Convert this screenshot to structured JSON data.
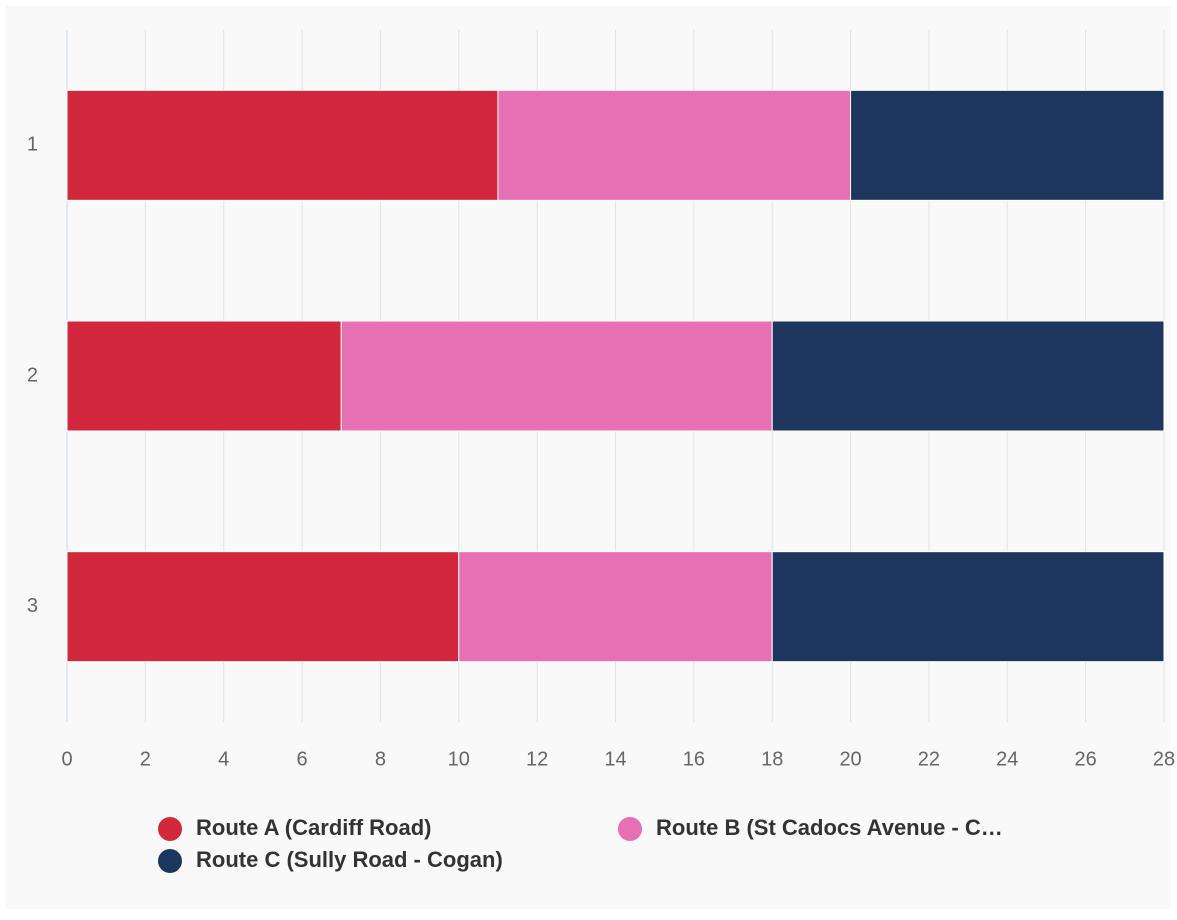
{
  "chart_data": {
    "type": "bar",
    "orientation": "horizontal",
    "stacked": true,
    "categories": [
      "1",
      "2",
      "3"
    ],
    "series": [
      {
        "name": "Route A (Cardiff Road)",
        "color": "#d3273e",
        "values": [
          11,
          7,
          10
        ]
      },
      {
        "name": "Route B (St Cadocs Avenue - C…",
        "color": "#e76fb3",
        "values": [
          9,
          11,
          8
        ]
      },
      {
        "name": "Route C (Sully Road - Cogan)",
        "color": "#1c365e",
        "values": [
          8,
          10,
          10
        ]
      }
    ],
    "xlim": [
      0,
      28
    ],
    "xticks": [
      0,
      2,
      4,
      6,
      8,
      10,
      12,
      14,
      16,
      18,
      20,
      22,
      24,
      26,
      28
    ],
    "grid": true
  }
}
